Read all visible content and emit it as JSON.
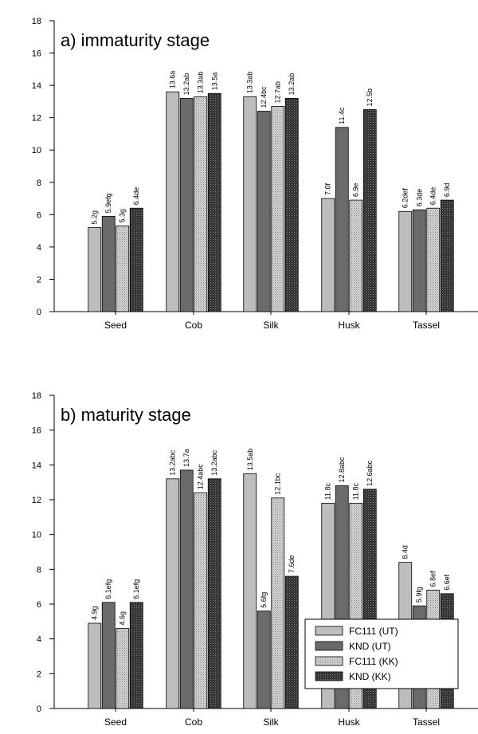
{
  "chart_data": [
    {
      "type": "bar",
      "title": "a) immaturity stage",
      "categories": [
        "Seed",
        "Cob",
        "Silk",
        "Husk",
        "Tassel"
      ],
      "ylim": [
        0,
        18
      ],
      "yticks": [
        "0",
        "2",
        "4",
        "6",
        "8",
        "10",
        "12",
        "14",
        "16",
        "18"
      ],
      "legend": "none",
      "series": [
        {
          "name": "FC111 (UT)",
          "color": "#bdbdbd",
          "pattern": "solid",
          "values": [
            5.2,
            13.6,
            13.3,
            7.0,
            6.2
          ],
          "labels": [
            "5.2g",
            "13.6a",
            "13.3ab",
            "7.0f",
            "6.2def"
          ]
        },
        {
          "name": "KND (UT)",
          "color": "#6b6b6b",
          "pattern": "solid",
          "values": [
            5.9,
            13.2,
            12.4,
            11.4,
            6.3
          ],
          "labels": [
            "5.9efg",
            "13.2ab",
            "12.4bc",
            "11.4c",
            "6.3de"
          ]
        },
        {
          "name": "FC111 (KK)",
          "color": "#c4c4c4",
          "pattern": "dots",
          "values": [
            5.3,
            13.3,
            12.7,
            6.9,
            6.4
          ],
          "labels": [
            "5.3g",
            "13.3ab",
            "12.7ab",
            "6.9e",
            "6.4de"
          ]
        },
        {
          "name": "KND (KK)",
          "color": "#3a3a3a",
          "pattern": "dark",
          "values": [
            6.4,
            13.5,
            13.2,
            12.5,
            6.9
          ],
          "labels": [
            "6.4de",
            "13.5a",
            "13.2ab",
            "12.5b",
            "6.9d"
          ]
        }
      ]
    },
    {
      "type": "bar",
      "title": "b) maturity stage",
      "categories": [
        "Seed",
        "Cob",
        "Silk",
        "Husk",
        "Tassel"
      ],
      "ylim": [
        0,
        18
      ],
      "yticks": [
        "0",
        "2",
        "4",
        "6",
        "8",
        "10",
        "12",
        "14",
        "16",
        "18"
      ],
      "legend": "bottom-right",
      "series": [
        {
          "name": "FC111 (UT)",
          "color": "#bdbdbd",
          "pattern": "solid",
          "values": [
            4.9,
            13.2,
            13.5,
            11.8,
            8.4
          ],
          "labels": [
            "4.9g",
            "13.2abc",
            "13.5ab",
            "11.8c",
            "8.4d"
          ]
        },
        {
          "name": "KND (UT)",
          "color": "#6b6b6b",
          "pattern": "solid",
          "values": [
            6.1,
            13.7,
            5.6,
            12.8,
            5.9
          ],
          "labels": [
            "6.1efg",
            "13.7a",
            "5.6fg",
            "12.8abc",
            "5.9fg"
          ]
        },
        {
          "name": "FC111 (KK)",
          "color": "#c4c4c4",
          "pattern": "dots",
          "values": [
            4.6,
            12.4,
            12.1,
            11.8,
            6.8
          ],
          "labels": [
            "4.6g",
            "12.4abc",
            "12.1bc",
            "11.8c",
            "6.8ef"
          ]
        },
        {
          "name": "KND (KK)",
          "color": "#3a3a3a",
          "pattern": "dark",
          "values": [
            6.1,
            13.2,
            7.6,
            12.6,
            6.6
          ],
          "labels": [
            "6.1efg",
            "13.2abc",
            "7.6de",
            "12.6abc",
            "6.6ef"
          ]
        }
      ]
    }
  ]
}
